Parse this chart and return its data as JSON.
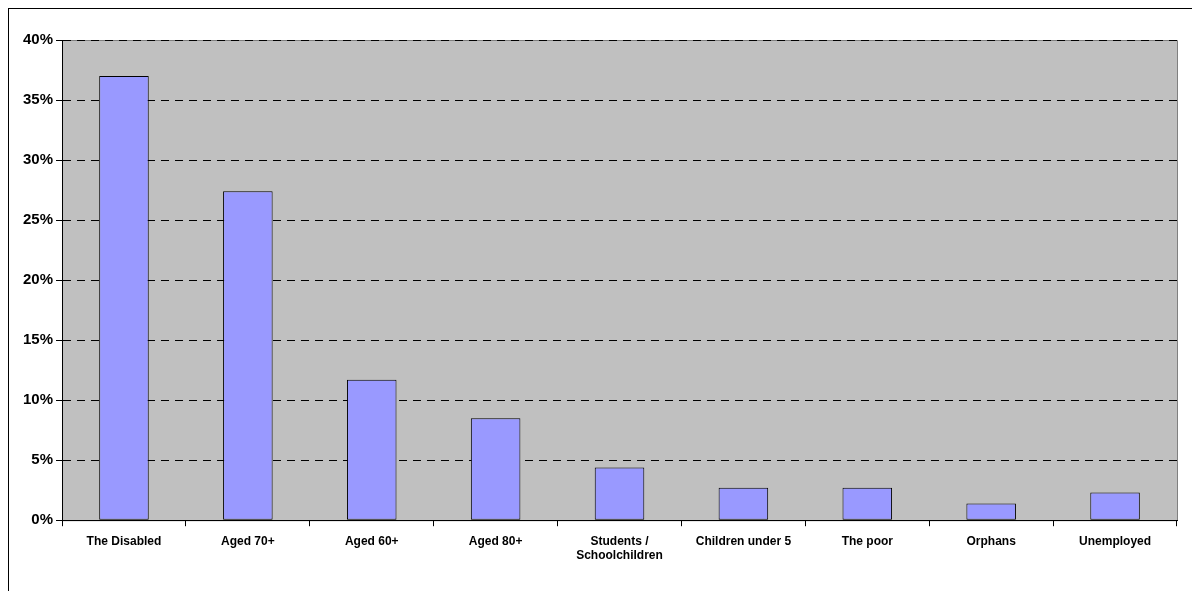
{
  "chart_data": {
    "type": "bar",
    "categories": [
      "The Disabled",
      "Aged 70+",
      "Aged 60+",
      "Aged 80+",
      "Students / Schoolchildren",
      "Children under 5",
      "The poor",
      "Orphans",
      "Unemployed"
    ],
    "values": [
      37,
      27.4,
      11.7,
      8.5,
      4.4,
      2.7,
      2.7,
      1.4,
      2.3
    ],
    "color": "#9999ff",
    "ylim": [
      0,
      40
    ],
    "yticks": [
      {
        "value": 0,
        "label": "0%"
      },
      {
        "value": 5,
        "label": "5%"
      },
      {
        "value": 10,
        "label": "10%"
      },
      {
        "value": 15,
        "label": "15%"
      },
      {
        "value": 20,
        "label": "20%"
      },
      {
        "value": 25,
        "label": "25%"
      },
      {
        "value": 30,
        "label": "30%"
      },
      {
        "value": 35,
        "label": "35%"
      },
      {
        "value": 40,
        "label": "40%"
      }
    ],
    "grid": "y"
  }
}
